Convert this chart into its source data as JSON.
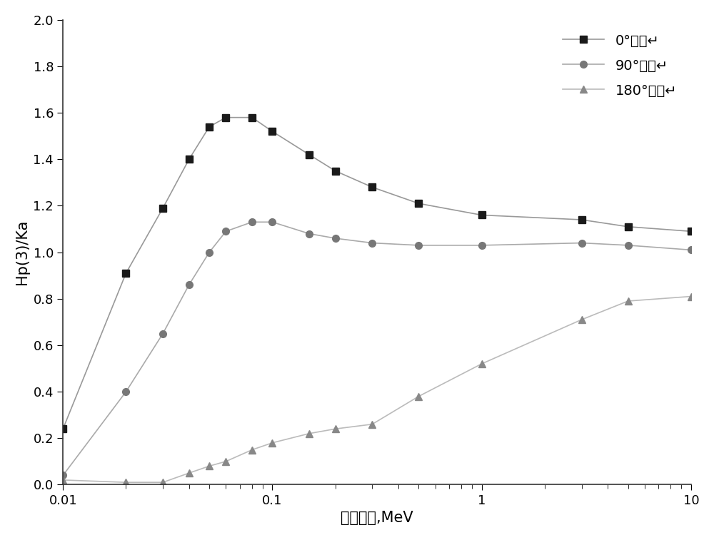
{
  "series": [
    {
      "label": "0°入射↵",
      "color": "#1a1a1a",
      "line_color": "#999999",
      "marker": "s",
      "markersize": 7,
      "linewidth": 1.2,
      "x": [
        0.01,
        0.02,
        0.03,
        0.04,
        0.05,
        0.06,
        0.08,
        0.1,
        0.15,
        0.2,
        0.3,
        0.5,
        1.0,
        3.0,
        5.0,
        10.0
      ],
      "y": [
        0.24,
        0.91,
        1.19,
        1.4,
        1.54,
        1.58,
        1.58,
        1.52,
        1.42,
        1.35,
        1.28,
        1.21,
        1.16,
        1.14,
        1.11,
        1.09
      ]
    },
    {
      "label": "90°入射↵",
      "color": "#777777",
      "line_color": "#aaaaaa",
      "marker": "o",
      "markersize": 7,
      "linewidth": 1.2,
      "x": [
        0.01,
        0.02,
        0.03,
        0.04,
        0.05,
        0.06,
        0.08,
        0.1,
        0.15,
        0.2,
        0.3,
        0.5,
        1.0,
        3.0,
        5.0,
        10.0
      ],
      "y": [
        0.04,
        0.4,
        0.65,
        0.86,
        1.0,
        1.09,
        1.13,
        1.13,
        1.08,
        1.06,
        1.04,
        1.03,
        1.03,
        1.04,
        1.03,
        1.01
      ]
    },
    {
      "label": "180°入射↵",
      "color": "#888888",
      "line_color": "#bbbbbb",
      "marker": "^",
      "markersize": 7,
      "linewidth": 1.2,
      "x": [
        0.01,
        0.02,
        0.03,
        0.04,
        0.05,
        0.06,
        0.08,
        0.1,
        0.15,
        0.2,
        0.3,
        0.5,
        1.0,
        3.0,
        5.0,
        10.0
      ],
      "y": [
        0.02,
        0.01,
        0.01,
        0.05,
        0.08,
        0.1,
        0.15,
        0.18,
        0.22,
        0.24,
        0.26,
        0.38,
        0.52,
        0.71,
        0.79,
        0.81
      ]
    }
  ],
  "xlabel": "光子能量,MeV",
  "ylabel": "Hp(3)/Ka",
  "xlim": [
    0.01,
    10.0
  ],
  "ylim": [
    0.0,
    2.0
  ],
  "yticks": [
    0.0,
    0.2,
    0.4,
    0.6,
    0.8,
    1.0,
    1.2,
    1.4,
    1.6,
    1.8,
    2.0
  ],
  "background_color": "#ffffff",
  "legend_loc": "upper right",
  "xlabel_fontsize": 15,
  "ylabel_fontsize": 15,
  "tick_fontsize": 13,
  "legend_fontsize": 14
}
